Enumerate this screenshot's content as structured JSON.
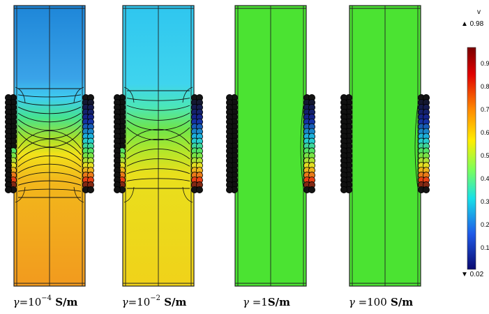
{
  "figure": {
    "colorbar": {
      "variable": "v",
      "max_label": "▲ 0.98",
      "min_label": "▼ 0.02",
      "ticks": [
        "0.9",
        "0.8",
        "0.7",
        "0.6",
        "0.5",
        "0.4",
        "0.3",
        "0.2",
        "0.1"
      ]
    },
    "panels": [
      {
        "caption_symbol": "γ",
        "caption_eq": "=10",
        "caption_exp": "−4",
        "caption_unit": " S/m",
        "top_color": "#1e86d8",
        "bottom_color": "#f29a1e",
        "field": "strong"
      },
      {
        "caption_symbol": "γ",
        "caption_eq": "=10",
        "caption_exp": "−2",
        "caption_unit": " S/m",
        "top_color": "#2fc6ef",
        "bottom_color": "#f0d21a",
        "field": "moderate"
      },
      {
        "caption_symbol": "γ",
        "caption_eq": " =1",
        "caption_exp": "",
        "caption_unit": "S/m",
        "top_color": "#4be332",
        "bottom_color": "#4be332",
        "field": "none"
      },
      {
        "caption_symbol": "γ",
        "caption_eq": " =100",
        "caption_exp": "",
        "caption_unit": " S/m",
        "top_color": "#4be332",
        "bottom_color": "#4be332",
        "field": "none"
      }
    ]
  }
}
